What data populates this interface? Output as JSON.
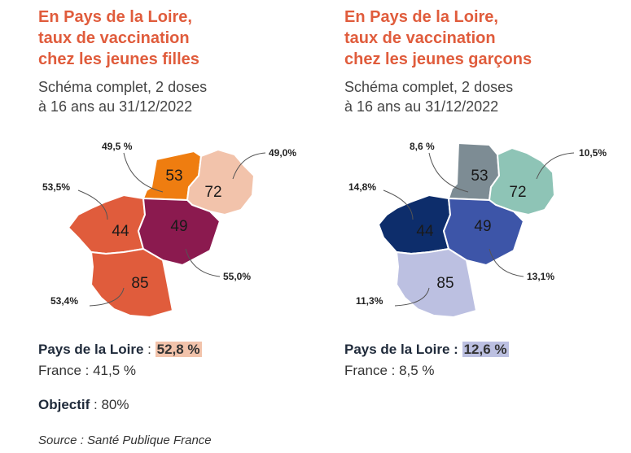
{
  "girls": {
    "title_lines": [
      "En Pays de la Loire,",
      "taux de vaccination",
      "chez les jeunes filles"
    ],
    "subtitle_lines": [
      "Schéma complet, 2 doses",
      "à 16 ans au 31/12/2022"
    ],
    "departments": [
      {
        "code": "53",
        "rate": "49,5 %",
        "color": "#ef7d10"
      },
      {
        "code": "72",
        "rate": "49,0%",
        "color": "#f2c3ab"
      },
      {
        "code": "44",
        "rate": "53,5%",
        "color": "#e05c3c"
      },
      {
        "code": "49",
        "rate": "55,0%",
        "color": "#8b1a4f"
      },
      {
        "code": "85",
        "rate": "53,4%",
        "color": "#e05c3c"
      }
    ],
    "region_label": "Pays de la Loire",
    "region_sep": " : ",
    "region_value": "52,8 %",
    "france_text": "France : 41,5 %",
    "objective_label": "Objectif",
    "objective_value": " : 80%"
  },
  "boys": {
    "title_lines": [
      "En Pays de la Loire,",
      "taux de vaccination",
      "chez les jeunes garçons"
    ],
    "subtitle_lines": [
      "Schéma complet, 2 doses",
      "à 16 ans au 31/12/2022"
    ],
    "departments": [
      {
        "code": "53",
        "rate": "8,6 %",
        "color": "#7d8c94"
      },
      {
        "code": "72",
        "rate": "10,5%",
        "color": "#8ec4b6"
      },
      {
        "code": "44",
        "rate": "14,8%",
        "color": "#0d2d6b"
      },
      {
        "code": "49",
        "rate": "13,1%",
        "color": "#3d55a8"
      },
      {
        "code": "85",
        "rate": "11,3%",
        "color": "#bcc0e1"
      }
    ],
    "region_label": "Pays de la Loire : ",
    "region_value": "12,6 %",
    "france_text": "France : 8,5 %"
  },
  "source": "Source : Santé Publique France"
}
